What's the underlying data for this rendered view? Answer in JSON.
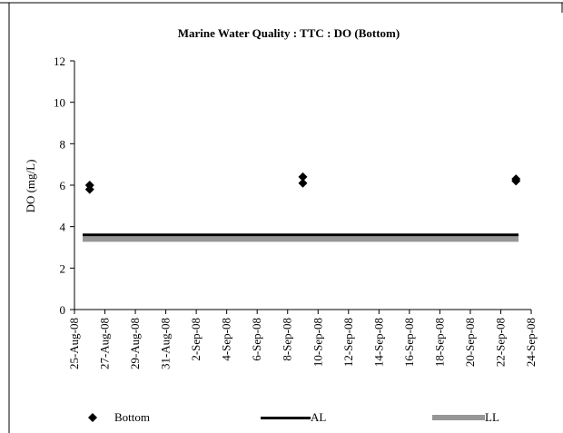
{
  "chart_data": {
    "type": "scatter",
    "title": "Marine Water Quality : TTC  : DO (Bottom)",
    "ylabel": "DO (mg/L)",
    "xlabel": "",
    "ylim": [
      0,
      12
    ],
    "yticks": [
      0,
      2,
      4,
      6,
      8,
      10,
      12
    ],
    "xlim": [
      "25-Aug-08",
      "24-Sep-08"
    ],
    "xtick_labels": [
      "25-Aug-08",
      "27-Aug-08",
      "29-Aug-08",
      "31-Aug-08",
      "2-Sep-08",
      "4-Sep-08",
      "6-Sep-08",
      "8-Sep-08",
      "10-Sep-08",
      "12-Sep-08",
      "14-Sep-08",
      "16-Sep-08",
      "18-Sep-08",
      "20-Sep-08",
      "22-Sep-08",
      "24-Sep-08"
    ],
    "grid": false,
    "legend_position": "bottom",
    "series": [
      {
        "name": "Bottom",
        "marker": "diamond",
        "color": "#000000",
        "points": [
          {
            "x": "26-Aug-08",
            "y": 5.8
          },
          {
            "x": "26-Aug-08",
            "y": 6.0
          },
          {
            "x": "9-Sep-08",
            "y": 6.1
          },
          {
            "x": "9-Sep-08",
            "y": 6.4
          },
          {
            "x": "23-Sep-08",
            "y": 6.2
          },
          {
            "x": "23-Sep-08",
            "y": 6.3
          }
        ]
      }
    ],
    "lines": [
      {
        "name": "AL",
        "y": 3.6,
        "color": "#000000"
      },
      {
        "name": "LL",
        "y": 3.4,
        "color": "#969696"
      }
    ]
  }
}
